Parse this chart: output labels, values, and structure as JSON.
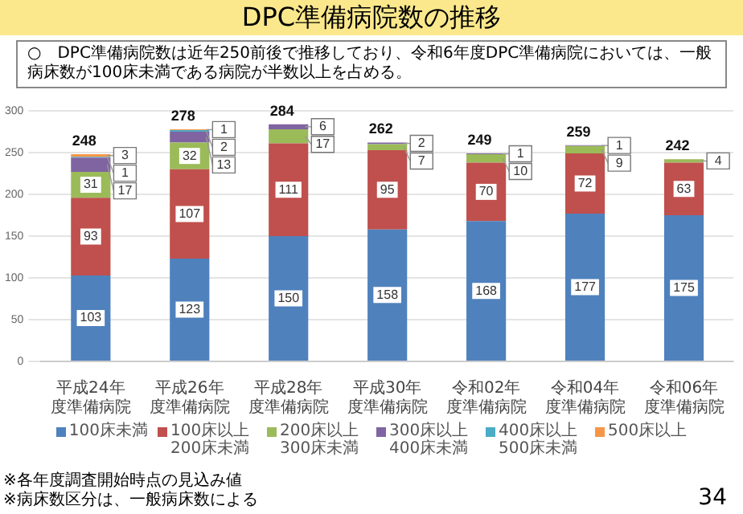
{
  "chart_data": {
    "type": "bar",
    "title": "DPC準備病院数の推移",
    "annotations": [
      "○　DPC準備病院数は近年250前後で推移しており、令和6年度DPC準備病院においては、一般病床数が100床未満である病院が半数以上を占める。",
      "※各年度調査開始時点の見込み値",
      "※病床数区分は、一般病床数による",
      "34"
    ],
    "categories": [
      "平成24年度準備病院",
      "平成26年度準備病院",
      "平成28年度準備病院",
      "平成30年度準備病院",
      "令和02年度準備病院",
      "令和04年度準備病院",
      "令和06年度準備病院"
    ],
    "series": [
      {
        "name": "100床未満",
        "color": "#4f81bd",
        "values": [
          103,
          123,
          150,
          158,
          168,
          177,
          175
        ]
      },
      {
        "name": "100床以上200床未満",
        "color": "#c0504d",
        "values": [
          93,
          107,
          111,
          95,
          70,
          72,
          63
        ]
      },
      {
        "name": "200床以上300床未満",
        "color": "#9bbb59",
        "values": [
          31,
          32,
          17,
          7,
          10,
          9,
          4
        ]
      },
      {
        "name": "300床以上400床未満",
        "color": "#8064a2",
        "values": [
          17,
          13,
          6,
          2,
          1,
          1,
          null
        ]
      },
      {
        "name": "400床以上500床未満",
        "color": "#4bacc6",
        "values": [
          1,
          2,
          null,
          null,
          null,
          null,
          null
        ]
      },
      {
        "name": "500床以上",
        "color": "#f79646",
        "values": [
          3,
          1,
          null,
          null,
          null,
          null,
          null
        ]
      }
    ],
    "totals": [
      "248",
      "278",
      "284",
      "262",
      "249",
      "259",
      "242"
    ],
    "stacked": true,
    "data_labels": true,
    "ylim": [
      0,
      300
    ],
    "yticks": [
      0,
      50,
      100,
      150,
      200,
      250,
      300
    ],
    "grid": "y",
    "legend": "bottom"
  }
}
